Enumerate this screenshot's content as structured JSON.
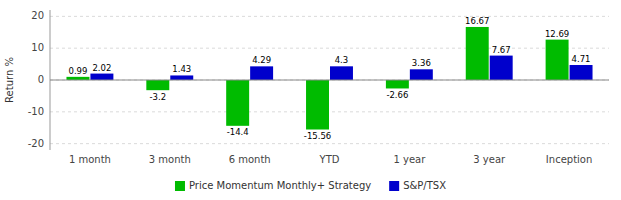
{
  "chart_data": {
    "type": "bar",
    "categories": [
      "1 month",
      "3 month",
      "6 month",
      "YTD",
      "1 year",
      "3 year",
      "Inception"
    ],
    "series": [
      {
        "name": "Price Momentum Monthly+ Strategy",
        "color": "#00BB00",
        "values": [
          0.99,
          -3.2,
          -14.4,
          -15.56,
          -2.66,
          16.67,
          12.69
        ]
      },
      {
        "name": "S&P/TSX",
        "color": "#0000CC",
        "values": [
          2.02,
          1.43,
          4.29,
          4.3,
          3.36,
          7.67,
          4.71
        ]
      }
    ],
    "y_label": "Return %",
    "ylim": [
      -22,
      22
    ],
    "yticks": [
      -20,
      -10,
      0,
      10,
      20
    ],
    "grid": true,
    "data_labels": true,
    "legend": "bottom"
  }
}
